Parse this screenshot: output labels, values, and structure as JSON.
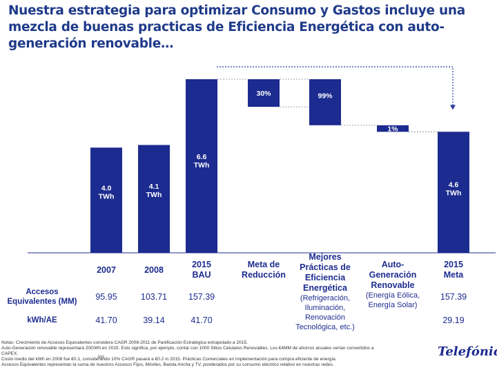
{
  "slide": {
    "title": "Nuestra estrategia para optimizar Consumo y Gastos incluye una mezcla de buenas practicas de Eficiencia Energética con auto-generación renovable…",
    "logo_text": "Telefónica"
  },
  "colors": {
    "bar": "#1c2b8f",
    "text": "#1c2b8f",
    "title": "#1f3a8a",
    "connector": "#9aa0b4",
    "arrow": "#2a3a9f"
  },
  "chart_data": {
    "type": "bar",
    "subtype": "waterfall",
    "unit": "TWh",
    "ylim": [
      0,
      6.6
    ],
    "bars": [
      {
        "kind": "total",
        "from": 0,
        "to": 4.0,
        "label": "4.0\nTWh"
      },
      {
        "kind": "total",
        "from": 0,
        "to": 4.1,
        "label": "4.1\nTWh"
      },
      {
        "kind": "total",
        "from": 0,
        "to": 6.6,
        "label": "6.6\nTWh"
      },
      {
        "kind": "delta",
        "from": 5.55,
        "to": 6.6,
        "label": "30%"
      },
      {
        "kind": "delta",
        "from": 4.85,
        "to": 6.6,
        "label": "99%"
      },
      {
        "kind": "delta",
        "from": 4.6,
        "to": 4.85,
        "label": "1%"
      },
      {
        "kind": "total",
        "from": 0,
        "to": 4.6,
        "label": "4.6\nTWh"
      }
    ]
  },
  "table": {
    "headers": [
      {
        "title": "2007",
        "sub": ""
      },
      {
        "title": "2008",
        "sub": ""
      },
      {
        "title": "2015\nBAU",
        "sub": ""
      },
      {
        "title": "Meta de\nReducción",
        "sub": ""
      },
      {
        "title": "Mejores\nPrácticas de\nEficiencia\nEnergética",
        "sub": "(Refrigeración,\nIluminación,\nRenovación\nTecnológica, etc.)"
      },
      {
        "title": "Auto-\nGeneración\nRenovable",
        "sub": "(Energía Eólica,\nEnergía Solar)"
      },
      {
        "title": "2015\nMeta",
        "sub": ""
      }
    ],
    "rows": [
      {
        "label": "Accesos\nEquivalentes (MM)",
        "values": [
          "95.95",
          "103.71",
          "157.39",
          "",
          "",
          "",
          "157.39"
        ]
      },
      {
        "label": "kWh/AE",
        "values": [
          "41.70",
          "39.14",
          "41.70",
          "",
          "",
          "",
          "29.19"
        ]
      }
    ]
  },
  "notes": [
    "Notas: Crecimiento de Accesos Equivalentes considera CAGR 2008-2011 de Panificación Estratégica extrapolado a 2015.",
    "Auto-Generación renovable representará 20GWh en 2015. Esto significa, por ejemplo, contar con 1000 Sitios Celulares Renovables. Los €4MM de ahorros anuales serían convertidos a",
    "CAPEX.",
    "Costo medio del kWh en 2008 fue €0.1, considerando 10% CAGR pasará a €0.2 in 2015. Prácticas Comerciales en implementación para compra eficiente de energía.",
    "Accesos Equivalentes representan la suma de nuestros Accesos Fijos, Móviles, Banda Ancha y TV, ponderados por su consumo eléctrico relativo en nuestras redes."
  ],
  "stray_text": "ico"
}
